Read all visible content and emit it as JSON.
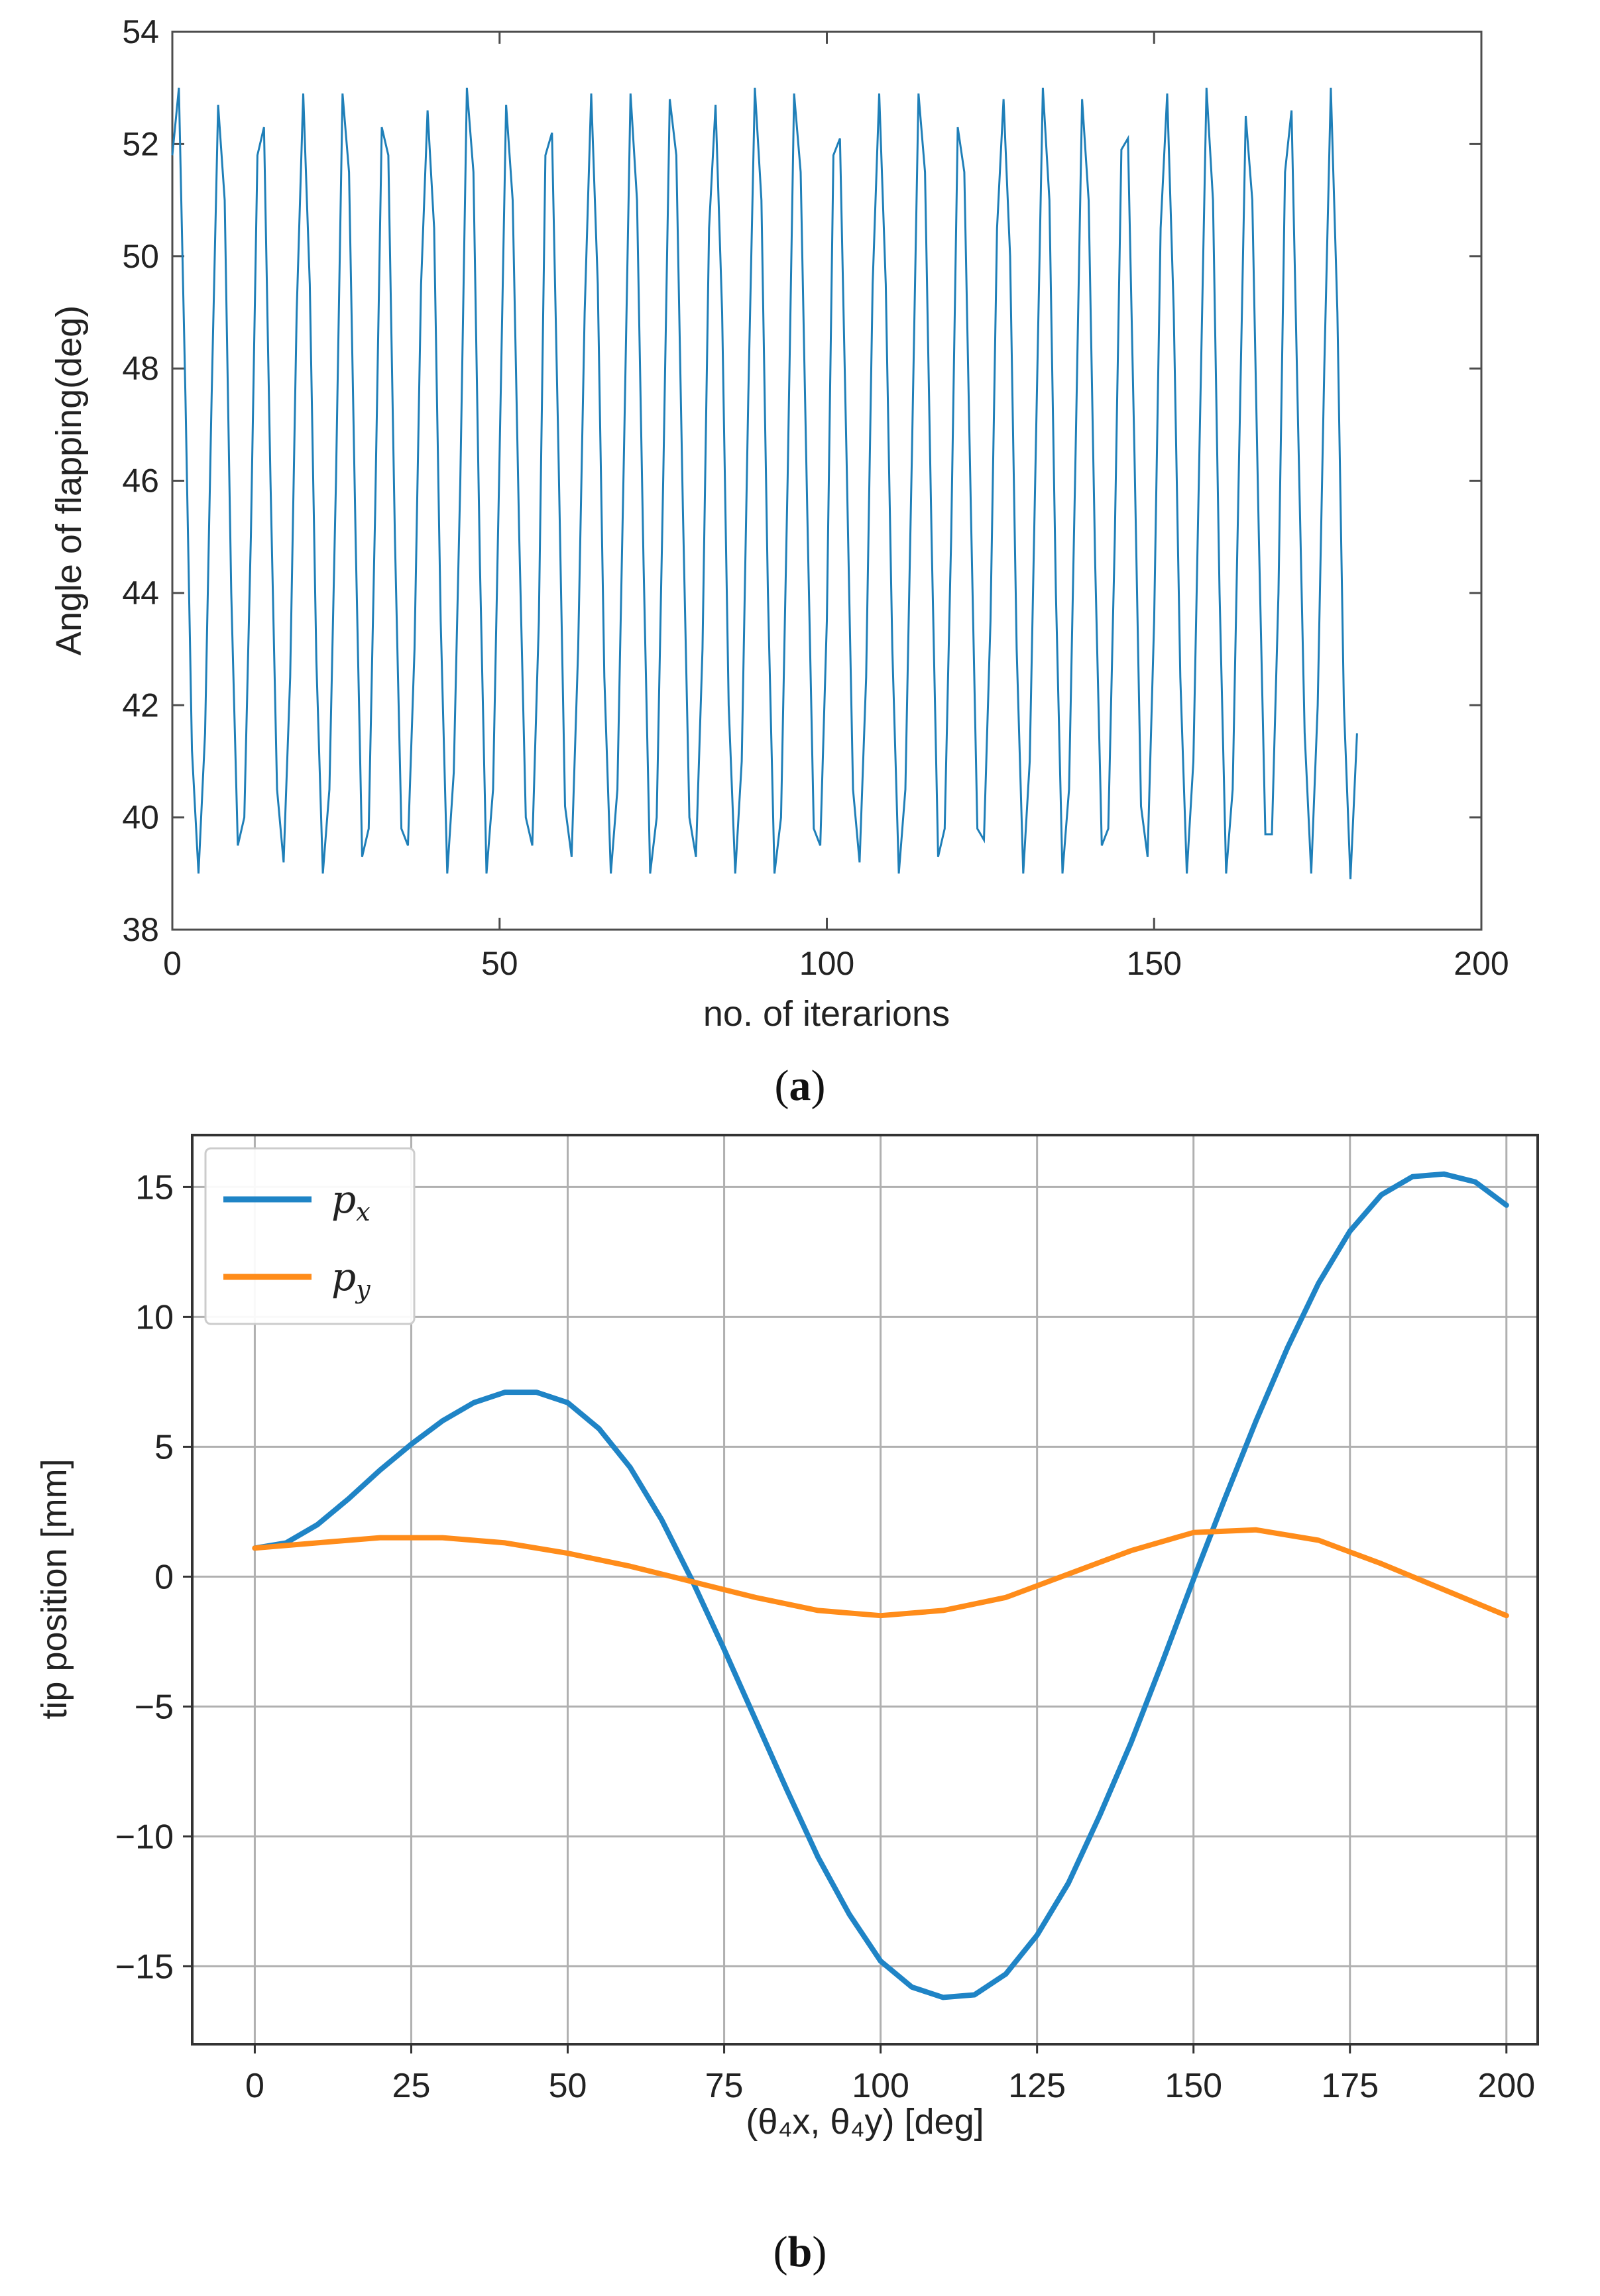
{
  "chart_data": [
    {
      "type": "line",
      "panel": "a",
      "caption_letter": "a",
      "xlabel": "no. of iterarions",
      "ylabel": "Angle of flapping(deg)",
      "xlim": [
        0,
        200
      ],
      "ylim": [
        38,
        54
      ],
      "xticks": [
        0,
        50,
        100,
        150,
        200
      ],
      "yticks": [
        38,
        40,
        42,
        44,
        46,
        48,
        50,
        52,
        54
      ],
      "grid": false,
      "series": [
        {
          "name": "flapping angle",
          "color": "#1f7fb8",
          "x": [
            0,
            1,
            2,
            3,
            4,
            5,
            6,
            7,
            8,
            9,
            10,
            11,
            12,
            13,
            14,
            15,
            16,
            17,
            18,
            19,
            20,
            21,
            22,
            23,
            24,
            25,
            26,
            27,
            28,
            29,
            30,
            31,
            32,
            33,
            34,
            35,
            36,
            37,
            38,
            39,
            40,
            41,
            42,
            43,
            44,
            45,
            46,
            47,
            48,
            49,
            50,
            51,
            52,
            53,
            54,
            55,
            56,
            57,
            58,
            59,
            60,
            61,
            62,
            63,
            64,
            65,
            66,
            67,
            68,
            69,
            70,
            71,
            72,
            73,
            74,
            75,
            76,
            77,
            78,
            79,
            80,
            81,
            82,
            83,
            84,
            85,
            86,
            87,
            88,
            89,
            90,
            91,
            92,
            93,
            94,
            95,
            96,
            97,
            98,
            99,
            100,
            101,
            102,
            103,
            104,
            105,
            106,
            107,
            108,
            109,
            110,
            111,
            112,
            113,
            114,
            115,
            116,
            117,
            118,
            119,
            120,
            121,
            122,
            123,
            124,
            125,
            126,
            127,
            128,
            129,
            130,
            131,
            132,
            133,
            134,
            135,
            136,
            137,
            138,
            139,
            140,
            141,
            142,
            143,
            144,
            145,
            146,
            147,
            148,
            149,
            150,
            151,
            152,
            153,
            154,
            155,
            156,
            157,
            158,
            159,
            160,
            161,
            162,
            163,
            164,
            165,
            166,
            167,
            168,
            169,
            170,
            171,
            172,
            173,
            174,
            175,
            176,
            177,
            178,
            179,
            180,
            181
          ],
          "y": [
            51.8,
            53.0,
            47.5,
            41.2,
            39.0,
            41.5,
            47.5,
            52.7,
            51.0,
            44.0,
            39.5,
            40.0,
            45.0,
            51.8,
            52.3,
            46.0,
            40.5,
            39.2,
            42.5,
            49.0,
            52.9,
            49.5,
            42.8,
            39.0,
            40.5,
            46.0,
            52.9,
            51.5,
            45.0,
            39.3,
            39.8,
            45.5,
            52.3,
            51.8,
            45.0,
            39.8,
            39.5,
            43.0,
            49.5,
            52.6,
            50.5,
            43.5,
            39.0,
            40.8,
            46.0,
            53.0,
            51.5,
            44.5,
            39.0,
            40.5,
            46.5,
            52.7,
            51.0,
            45.0,
            40.0,
            39.5,
            43.5,
            51.8,
            52.2,
            46.5,
            40.2,
            39.3,
            43.0,
            49.0,
            52.9,
            49.5,
            42.5,
            39.0,
            40.5,
            46.5,
            52.9,
            51.0,
            44.5,
            39.0,
            40.0,
            46.0,
            52.8,
            51.8,
            45.5,
            40.0,
            39.3,
            43.0,
            50.5,
            52.7,
            49.0,
            42.0,
            39.0,
            41.0,
            47.5,
            53.0,
            51.0,
            44.0,
            39.0,
            40.0,
            46.0,
            52.9,
            51.5,
            45.5,
            39.8,
            39.5,
            43.5,
            51.8,
            52.1,
            46.5,
            40.5,
            39.2,
            42.5,
            49.5,
            52.9,
            49.5,
            43.0,
            39.0,
            40.5,
            46.5,
            52.9,
            51.5,
            45.0,
            39.3,
            39.8,
            45.0,
            52.3,
            51.5,
            45.5,
            39.8,
            39.6,
            43.5,
            50.5,
            52.8,
            50.0,
            43.0,
            39.0,
            41.0,
            47.0,
            53.0,
            51.0,
            44.0,
            39.0,
            40.5,
            46.5,
            52.8,
            51.0,
            44.5,
            39.5,
            39.8,
            45.0,
            51.9,
            52.1,
            46.5,
            40.2,
            39.3,
            43.5,
            50.5,
            52.9,
            49.0,
            42.5,
            39.0,
            41.0,
            47.0,
            53.0,
            51.0,
            44.0,
            39.0,
            40.5,
            46.5,
            52.5,
            51.0,
            45.0,
            39.7,
            39.7,
            44.0,
            51.5,
            52.6,
            47.0,
            41.5,
            39.0,
            42.0,
            48.0,
            53.0,
            49.0,
            42.0,
            38.9,
            41.5
          ]
        }
      ]
    },
    {
      "type": "line",
      "panel": "b",
      "caption_letter": "b",
      "xlabel": "(θ₄x, θ₄y) [deg]",
      "ylabel": "tip position [mm]",
      "xlim": [
        -10,
        205
      ],
      "ylim": [
        -18,
        17
      ],
      "xticks": [
        0,
        25,
        50,
        75,
        100,
        125,
        150,
        175,
        200
      ],
      "xtick_labels": [
        "0",
        "25",
        "50",
        "75",
        "100",
        "125",
        "150",
        "175",
        "200"
      ],
      "yticks": [
        -15,
        -10,
        -5,
        0,
        5,
        10,
        15
      ],
      "ytick_labels": [
        "−15",
        "−10",
        "−5",
        "0",
        "5",
        "10",
        "15"
      ],
      "grid": true,
      "legend": "top-left",
      "series": [
        {
          "name": "px",
          "label_main": "p",
          "label_sub": "x",
          "color": "#1f84c6",
          "x": [
            0,
            5,
            10,
            15,
            20,
            25,
            30,
            35,
            40,
            45,
            50,
            55,
            60,
            65,
            70,
            75,
            80,
            85,
            90,
            95,
            100,
            105,
            110,
            115,
            120,
            125,
            130,
            135,
            140,
            145,
            150,
            155,
            160,
            165,
            170,
            175,
            180,
            185,
            190,
            195,
            200
          ],
          "y": [
            1.1,
            1.3,
            2.0,
            3.0,
            4.1,
            5.1,
            6.0,
            6.7,
            7.1,
            7.1,
            6.7,
            5.7,
            4.2,
            2.2,
            -0.2,
            -2.8,
            -5.5,
            -8.2,
            -10.8,
            -13.0,
            -14.8,
            -15.8,
            -16.2,
            -16.1,
            -15.3,
            -13.8,
            -11.8,
            -9.2,
            -6.4,
            -3.3,
            -0.1,
            3.0,
            6.0,
            8.8,
            11.3,
            13.3,
            14.7,
            15.4,
            15.5,
            15.2,
            14.3
          ]
        },
        {
          "name": "py",
          "label_main": "p",
          "label_sub": "y",
          "color": "#ff8c1a",
          "x": [
            0,
            10,
            20,
            30,
            40,
            50,
            60,
            70,
            80,
            90,
            100,
            110,
            120,
            130,
            140,
            150,
            160,
            170,
            180,
            190,
            200
          ],
          "y": [
            1.1,
            1.3,
            1.5,
            1.5,
            1.3,
            0.9,
            0.4,
            -0.2,
            -0.8,
            -1.3,
            -1.5,
            -1.3,
            -0.8,
            0.1,
            1.0,
            1.7,
            1.8,
            1.4,
            0.5,
            -0.5,
            -1.5
          ]
        }
      ]
    }
  ]
}
